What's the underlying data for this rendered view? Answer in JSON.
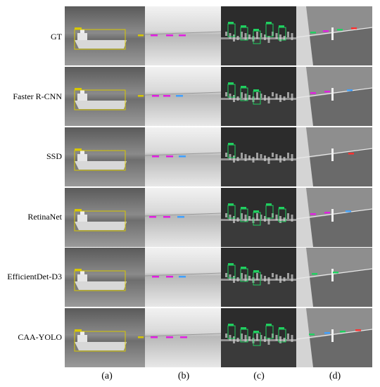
{
  "figure": {
    "rows": [
      {
        "key": "gt",
        "label": "GT"
      },
      {
        "key": "faster_rcnn",
        "label": "Faster R-CNN"
      },
      {
        "key": "ssd",
        "label": "SSD"
      },
      {
        "key": "retinanet",
        "label": "RetinaNet"
      },
      {
        "key": "efficientdet_d3",
        "label": "EfficientDet-D3"
      },
      {
        "key": "caa_yolo",
        "label": "CAA-YOLO"
      }
    ],
    "columns": [
      {
        "key": "a",
        "label": "(a)"
      },
      {
        "key": "b",
        "label": "(b)"
      },
      {
        "key": "c",
        "label": "(c)"
      },
      {
        "key": "d",
        "label": "(d)"
      }
    ],
    "box_colors": {
      "yellow": "#d8c800",
      "magenta": "#e020e0",
      "green": "#20d060",
      "cyan": "#40a0ff",
      "red": "#ff3030"
    }
  }
}
